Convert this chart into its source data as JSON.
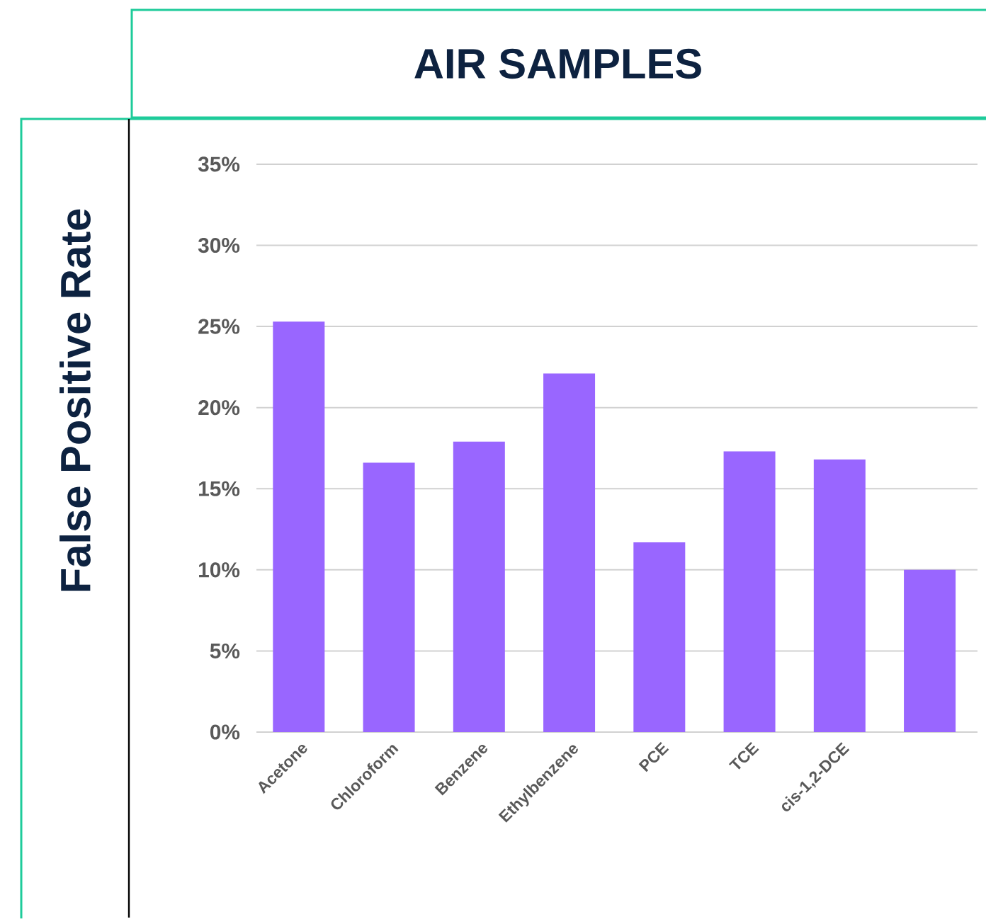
{
  "chart_data": {
    "type": "bar",
    "title": "AIR SAMPLES",
    "ylabel": "False Positive Rate",
    "categories": [
      "Acetone",
      "Chloroform",
      "Benzene",
      "Ethylbenzene",
      "PCE",
      "TCE",
      "cis-1,2-DCE",
      null
    ],
    "values": [
      25.3,
      16.6,
      17.9,
      22.1,
      11.7,
      17.3,
      16.8,
      10.0
    ],
    "color": "#9966ff",
    "ylim": [
      0,
      35
    ],
    "yticks": [
      {
        "value": 0,
        "label": "0%"
      },
      {
        "value": 5,
        "label": "5%"
      },
      {
        "value": 10,
        "label": "10%"
      },
      {
        "value": 15,
        "label": "15%"
      },
      {
        "value": 20,
        "label": "20%"
      },
      {
        "value": 25,
        "label": "25%"
      },
      {
        "value": 30,
        "label": "30%"
      },
      {
        "value": 35,
        "label": "35%"
      }
    ],
    "grid": "y"
  }
}
